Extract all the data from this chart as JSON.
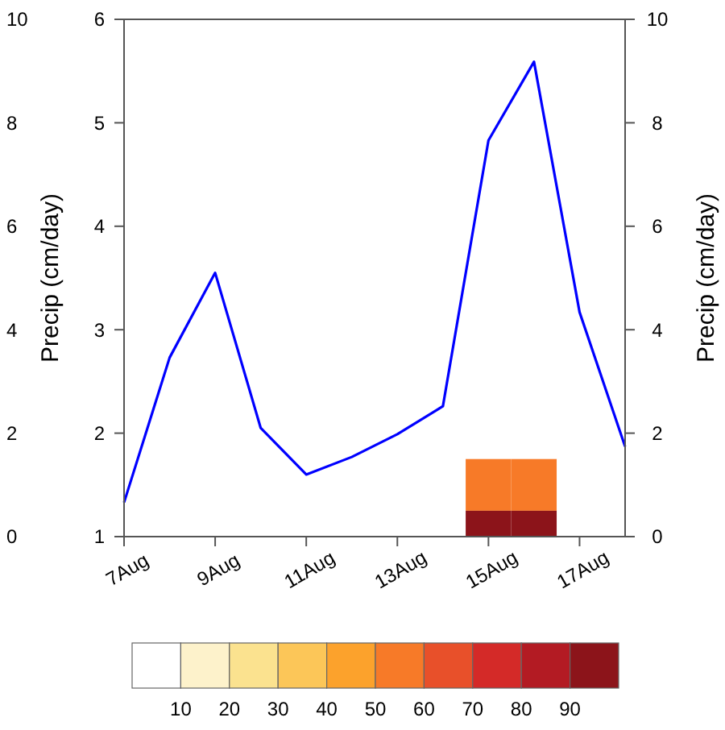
{
  "chart_data": [
    {
      "type": "line",
      "categories": [
        "7Aug",
        null,
        "9Aug",
        null,
        "11Aug",
        null,
        "13Aug",
        null,
        "15Aug",
        null,
        "17Aug",
        null
      ],
      "series": [
        {
          "color": "#0000ff",
          "values": [
            1.33,
            2.73,
            3.55,
            2.05,
            1.6,
            1.77,
            1.99,
            2.26,
            4.83,
            5.59,
            3.17,
            1.87
          ]
        }
      ],
      "ylim": [
        1,
        6
      ],
      "yticks": [
        1,
        2,
        3,
        4,
        5,
        6
      ],
      "ylabel": "Precip (cm/day)"
    },
    {
      "type": "heatmap",
      "categories": [
        null,
        null,
        null,
        null,
        null,
        null,
        null,
        null,
        null,
        null,
        null,
        null
      ],
      "cells": [
        [
          0,
          0,
          0,
          0,
          0,
          0,
          0,
          0,
          0,
          0,
          0,
          0
        ],
        [
          0,
          0,
          0,
          0,
          0,
          0,
          0,
          0,
          0,
          0,
          0,
          0
        ],
        [
          0,
          0,
          0,
          0,
          0,
          0,
          0,
          0,
          0,
          0,
          0,
          0
        ],
        [
          0,
          0,
          0,
          0,
          0,
          0,
          0,
          0,
          0,
          0,
          0,
          0
        ],
        [
          0,
          0,
          0,
          0,
          0,
          0,
          0,
          0,
          0,
          0,
          0,
          0
        ],
        [
          0,
          0,
          0,
          0,
          0,
          0,
          0,
          0,
          0,
          0,
          0,
          0
        ],
        [
          0,
          0,
          0,
          0,
          0,
          0,
          0,
          0,
          0,
          0,
          0,
          0
        ],
        [
          0,
          0,
          0,
          0,
          0,
          0,
          0,
          0,
          0,
          0,
          0,
          0
        ],
        [
          0,
          0,
          0,
          0,
          0,
          0,
          0,
          0,
          0,
          0,
          0,
          0
        ],
        [
          0,
          0,
          0,
          0,
          0,
          0,
          0,
          0,
          55,
          55,
          0,
          0
        ],
        [
          0,
          0,
          0,
          0,
          0,
          0,
          0,
          0,
          99,
          99,
          0,
          0
        ]
      ],
      "clim": [
        0,
        100
      ],
      "cticks": [
        10,
        20,
        30,
        40,
        50,
        60,
        70,
        80,
        90
      ],
      "colors": [
        "#ffffff",
        "#fdf2cb",
        "#fbe28f",
        "#fcc658",
        "#fca22c",
        "#f77a28",
        "#e8502a",
        "#d42a28",
        "#b31b23",
        "#8c141a"
      ],
      "ylim": [
        0,
        10
      ],
      "yticks": [
        0,
        2,
        4,
        6,
        8,
        10
      ],
      "y2lim": [
        0,
        10
      ],
      "y2ticks": [
        0,
        2,
        4,
        6,
        8,
        10
      ],
      "y2label": "Precip (cm/day)"
    }
  ]
}
